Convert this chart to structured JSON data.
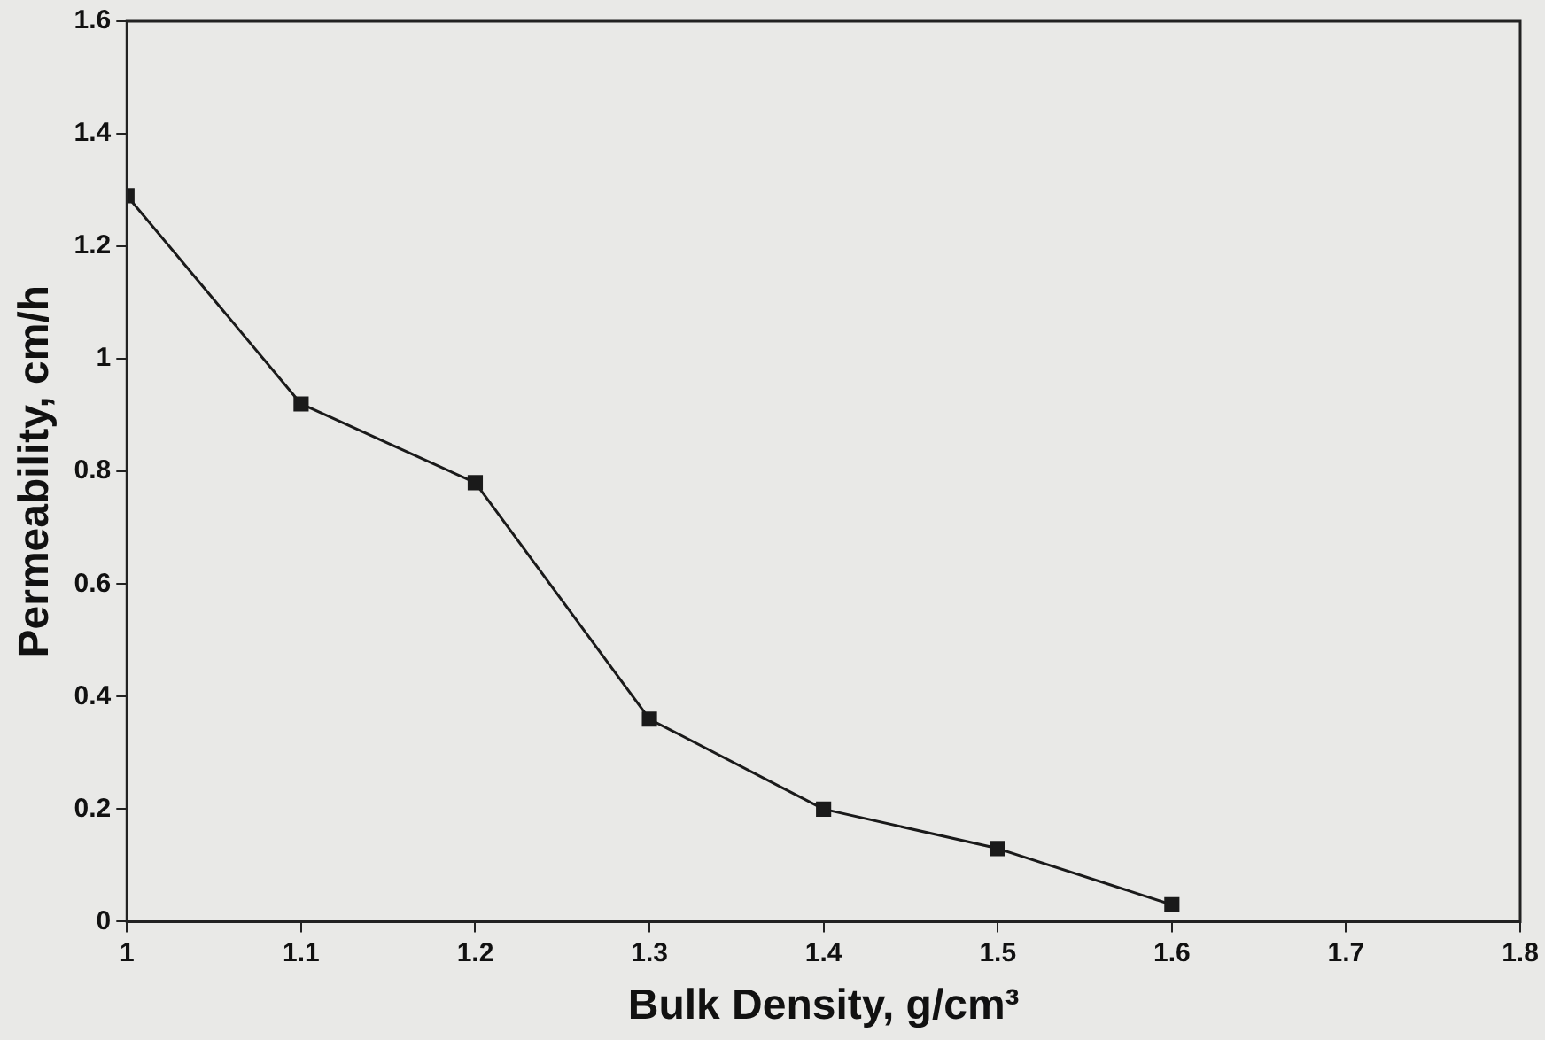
{
  "chart_data": {
    "type": "line",
    "xlabel": "Bulk Density, g/cm³",
    "ylabel": "Permeability, cm/h",
    "x": [
      1,
      1.1,
      1.2,
      1.3,
      1.4,
      1.5,
      1.6
    ],
    "series": [
      {
        "color": "#1a1a1a",
        "values": [
          1.29,
          0.92,
          0.78,
          0.36,
          0.2,
          0.13,
          0.03
        ]
      }
    ],
    "xlim": [
      1,
      1.8
    ],
    "xticks": [
      1,
      1.1,
      1.2,
      1.3,
      1.4,
      1.5,
      1.6,
      1.7,
      1.8
    ],
    "ylim": [
      0,
      1.6
    ],
    "yticks": [
      0,
      0.2,
      0.4,
      0.6,
      0.8,
      1,
      1.2,
      1.4,
      1.6
    ],
    "grid": false,
    "legend": false,
    "marker": "square",
    "line_style": "solid"
  }
}
